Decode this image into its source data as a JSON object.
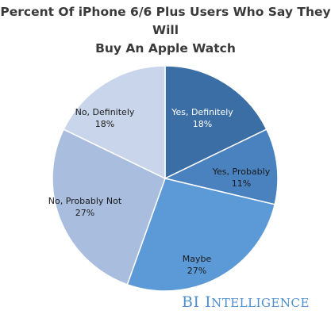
{
  "title_line1": "Percent Of iPhone 6/6 Plus Users Who Say They Will",
  "title_line2": "Buy An Apple Watch",
  "brand": {
    "big1": "BI",
    "big2": "I",
    "small": "NTELLIGENCE",
    "color": "#4d8fd0"
  },
  "chart_data": {
    "type": "pie",
    "title": "Percent Of iPhone 6/6 Plus Users Who Say They Will Buy An Apple Watch",
    "slices": [
      {
        "label": "Yes, Definitely",
        "value": 18,
        "display": "18%",
        "color": "#3a6ea5"
      },
      {
        "label": "Yes, Probably",
        "value": 11,
        "display": "11%",
        "color": "#4a82c0"
      },
      {
        "label": "Maybe",
        "value": 27,
        "display": "27%",
        "color": "#5b9ad6"
      },
      {
        "label": "No, Probably Not",
        "value": 27,
        "display": "27%",
        "color": "#a9bddf"
      },
      {
        "label": "No, Definitely",
        "value": 18,
        "display": "18%",
        "color": "#c9d5ea"
      }
    ]
  }
}
